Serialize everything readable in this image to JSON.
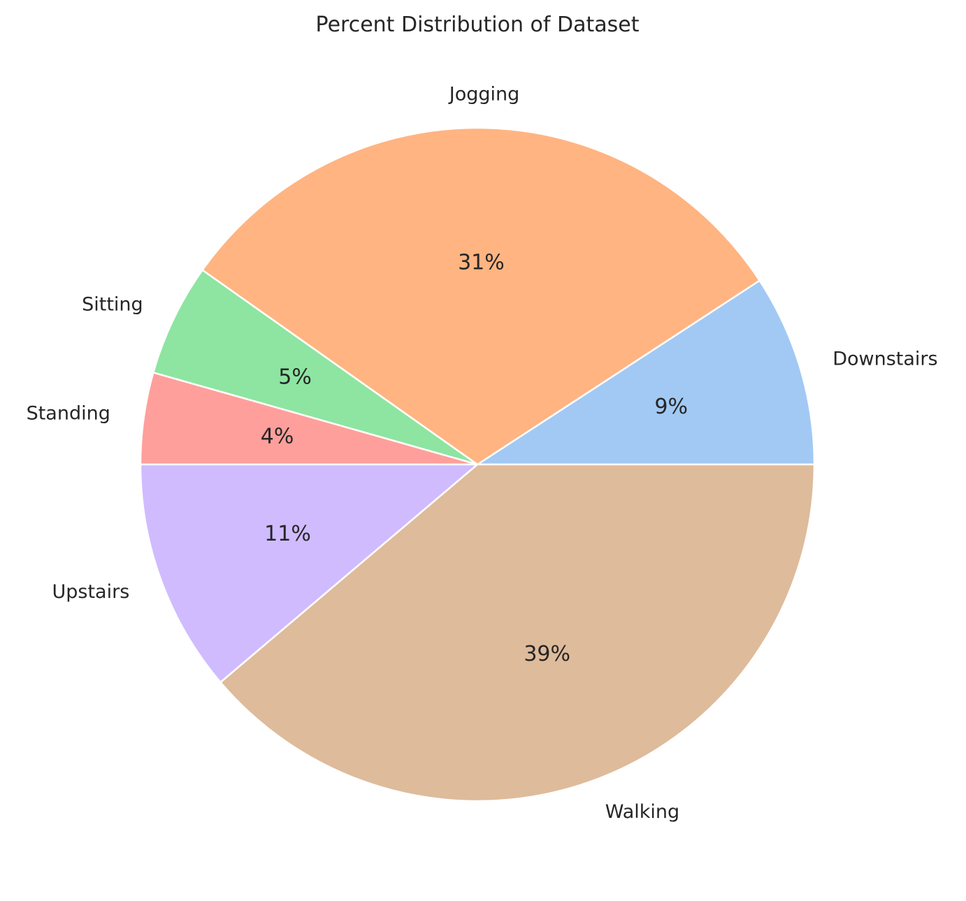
{
  "chart_data": {
    "type": "pie",
    "title": "Percent Distribution of Dataset",
    "categories": [
      "Downstairs",
      "Jogging",
      "Sitting",
      "Standing",
      "Upstairs",
      "Walking"
    ],
    "values": [
      9.2,
      31.0,
      5.4,
      4.4,
      11.2,
      38.8
    ],
    "value_labels": [
      "9%",
      "31%",
      "5%",
      "4%",
      "11%",
      "39%"
    ],
    "colors": [
      "#a1c9f4",
      "#ffb482",
      "#8de5a1",
      "#ff9f9b",
      "#d0bbff",
      "#debb9b"
    ],
    "start_angle_deg": 0,
    "direction": "counterclockwise",
    "legend": "none",
    "grid": false
  }
}
